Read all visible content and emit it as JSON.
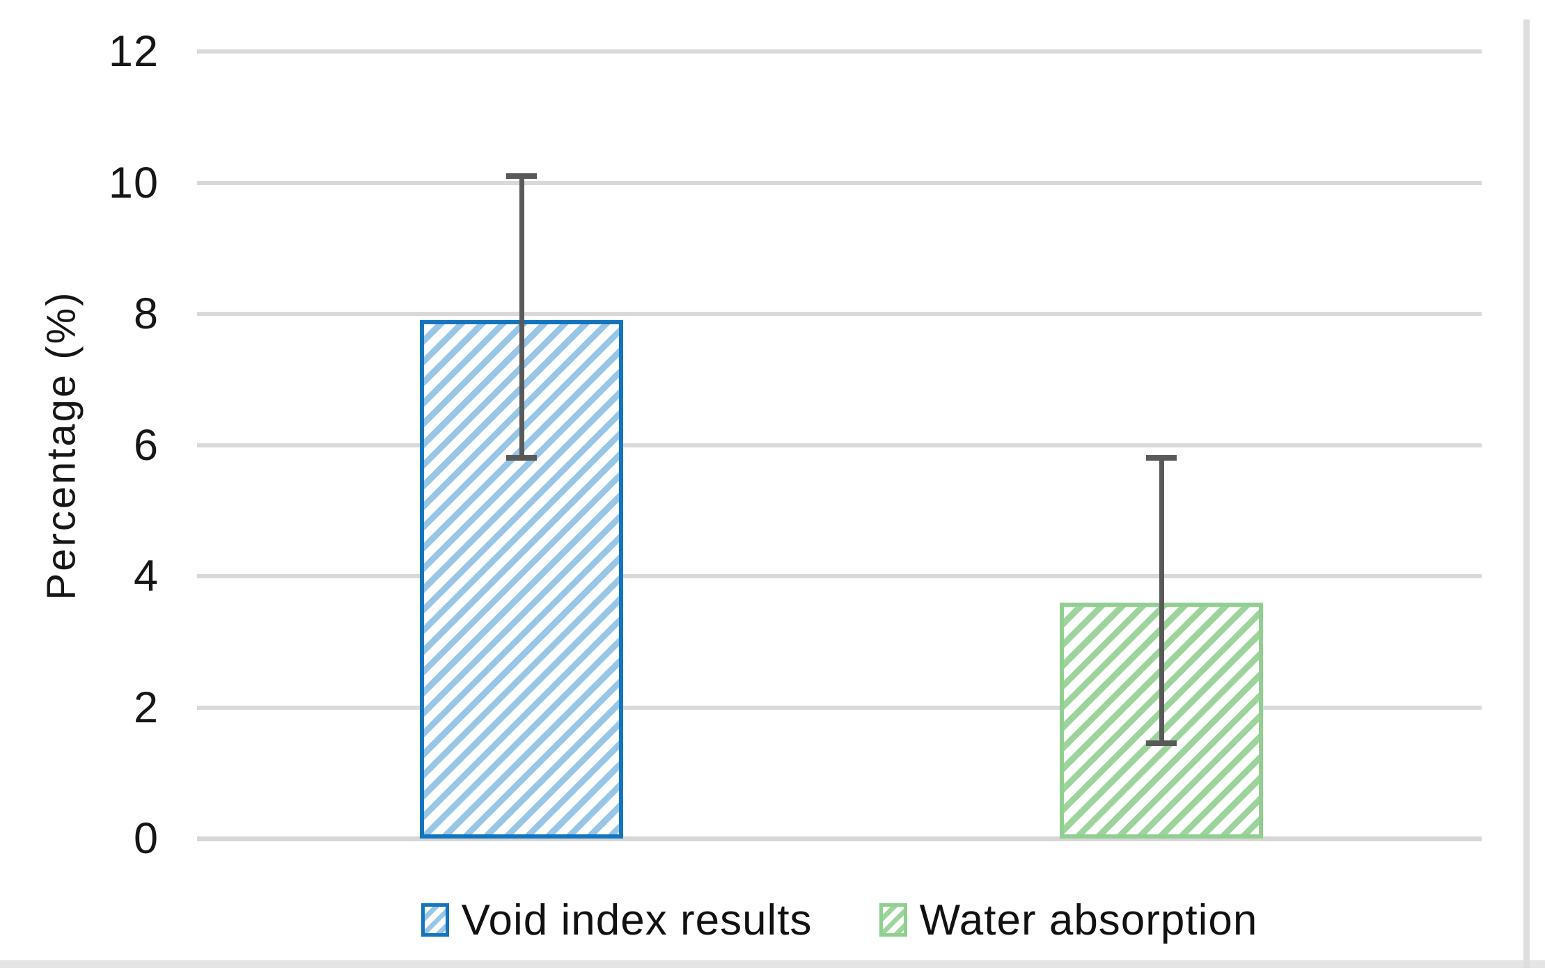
{
  "axis": {
    "y_title": "Percentage (%)"
  },
  "legend": {
    "items": [
      {
        "label": "Void index results"
      },
      {
        "label": "Water absorption"
      }
    ]
  },
  "colors": {
    "gridline": "#D9D9D9",
    "axis_baseline": "#D6D6D6",
    "error_bar": "#595959",
    "tick_text": "#161616",
    "blue_border": "#1474BE",
    "blue_stripe": "#97C6E7",
    "green_border": "#91CF91",
    "green_stripe": "#9DD49C"
  },
  "chart_data": {
    "type": "bar",
    "title": "",
    "xlabel": "",
    "ylabel": "Percentage (%)",
    "ylim": [
      0,
      12
    ],
    "yticks": [
      0,
      2,
      4,
      6,
      8,
      10,
      12
    ],
    "grid": "horizontal",
    "legend_position": "bottom",
    "categories": [
      "Void index results",
      "Water absorption"
    ],
    "series": [
      {
        "name": "Void index results",
        "value": 7.9,
        "error_low": 5.8,
        "error_high": 10.1,
        "hatch": "diagonal-forward",
        "stripe_color": "#97C6E7",
        "border_color": "#1474BE"
      },
      {
        "name": "Water absorption",
        "value": 3.6,
        "error_low": 1.45,
        "error_high": 5.8,
        "hatch": "diagonal-forward",
        "stripe_color": "#9DD49C",
        "border_color": "#91CF91"
      }
    ]
  }
}
